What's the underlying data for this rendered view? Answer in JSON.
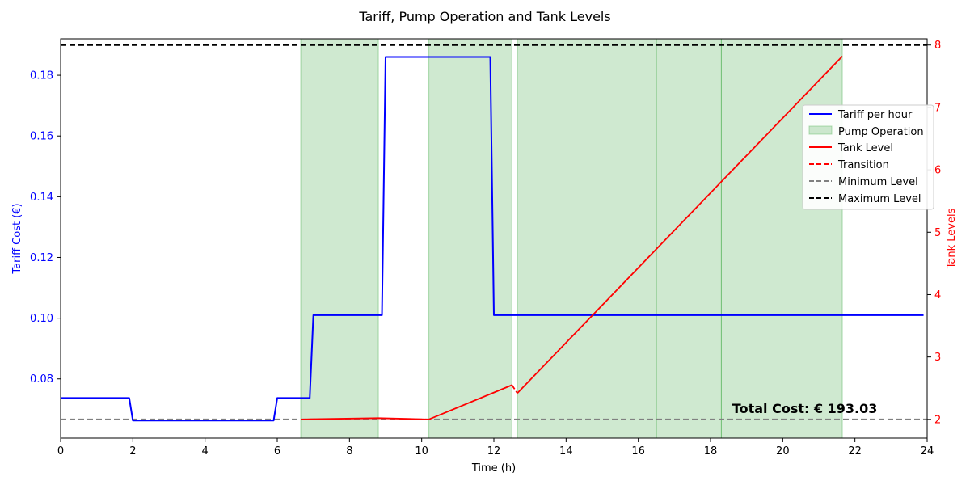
{
  "chart_data": {
    "type": "line",
    "title": "Tariff, Pump Operation and Tank Levels",
    "xlabel": "Time (h)",
    "ylabel_left": "Tariff Cost (€)",
    "ylabel_right": "Tank Levels",
    "xlim": [
      0,
      24
    ],
    "ylim_left": [
      0.0605,
      0.192
    ],
    "ylim_right": [
      1.7,
      8.1
    ],
    "x_ticks": [
      "0",
      "2",
      "4",
      "6",
      "8",
      "10",
      "12",
      "14",
      "16",
      "18",
      "20",
      "22",
      "24"
    ],
    "y_left_ticks": [
      "0.08",
      "0.10",
      "0.12",
      "0.14",
      "0.16",
      "0.18"
    ],
    "y_right_ticks": [
      "2",
      "3",
      "4",
      "5",
      "6",
      "7",
      "8"
    ],
    "grid": false,
    "legend_position": "right",
    "colors": {
      "tariff": "#0000ff",
      "tank": "#ff0000",
      "pump": "#4caf50",
      "min_level": "#808080",
      "max_level": "#000000",
      "left_axis": "#0000ff",
      "right_axis": "#ff0000"
    },
    "series": [
      {
        "name": "Tariff per hour",
        "axis": "left",
        "x": [
          0,
          1.9,
          2.0,
          5.9,
          6.0,
          6.9,
          7.0,
          8.9,
          9.0,
          11.9,
          12.0,
          23.9
        ],
        "y": [
          0.0737,
          0.0737,
          0.0663,
          0.0663,
          0.0737,
          0.0737,
          0.101,
          0.101,
          0.186,
          0.186,
          0.101,
          0.101
        ]
      },
      {
        "name": "Tank Level",
        "axis": "right",
        "segments": [
          {
            "x": [
              6.65,
              8.8,
              10.2
            ],
            "y": [
              2.0,
              2.02,
              2.0
            ]
          },
          {
            "x": [
              10.2,
              12.5
            ],
            "y": [
              2.0,
              2.55
            ]
          },
          {
            "x": [
              12.65,
              16.5,
              18.3,
              21.65
            ],
            "y": [
              2.42,
              4.73,
              5.81,
              7.82
            ]
          }
        ]
      },
      {
        "name": "Transition",
        "axis": "right",
        "x": [
          12.5,
          12.65
        ],
        "y": [
          2.55,
          2.42
        ]
      },
      {
        "name": "Minimum Level",
        "axis": "right",
        "value": 2
      },
      {
        "name": "Maximum Level",
        "axis": "right",
        "value": 8
      }
    ],
    "pump_operation": {
      "name": "Pump Operation",
      "intervals": [
        [
          6.65,
          8.8
        ],
        [
          10.2,
          12.5
        ],
        [
          12.65,
          16.5
        ],
        [
          16.5,
          18.3
        ],
        [
          18.3,
          21.65
        ]
      ]
    },
    "annotation": {
      "text": "Total Cost: € 193.03",
      "x": 18.6,
      "y_right": 2.1
    }
  }
}
